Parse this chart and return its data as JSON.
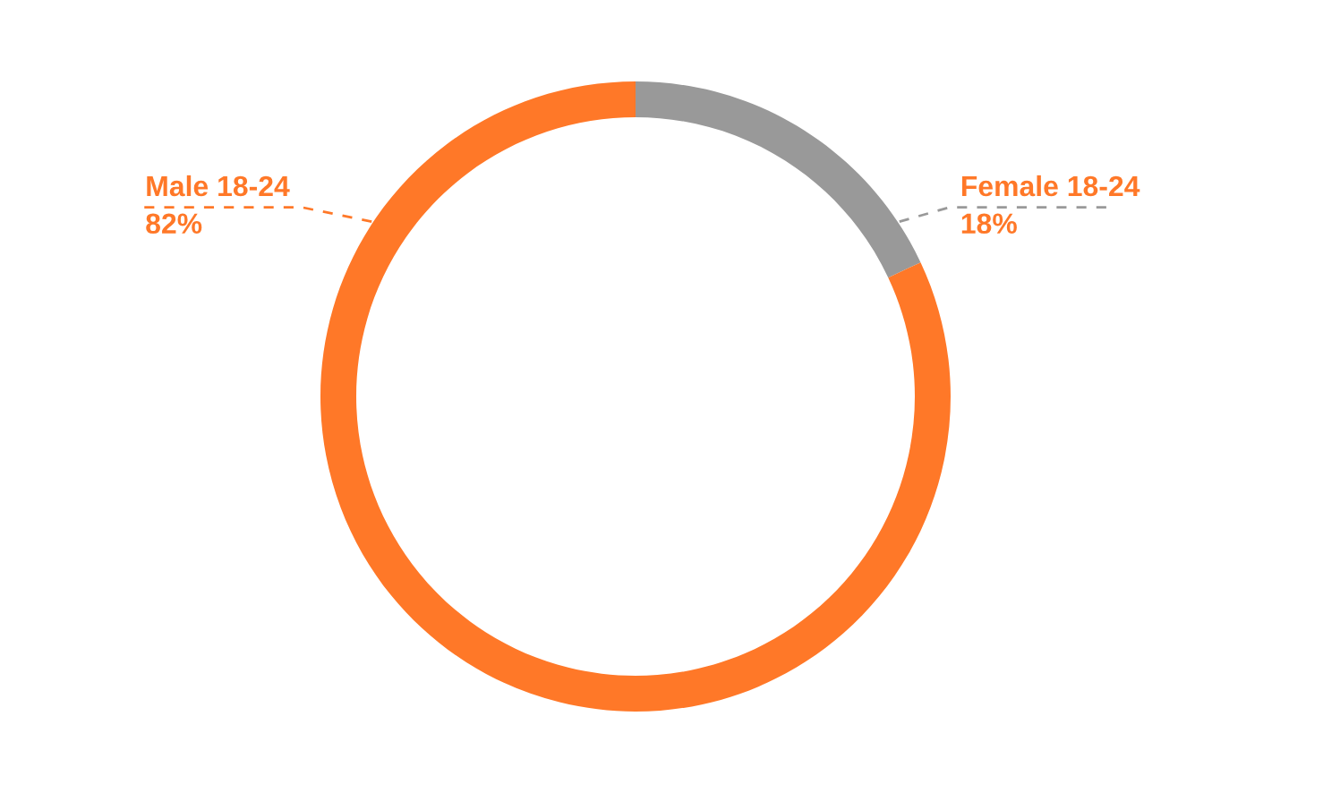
{
  "chart_data": {
    "type": "donut",
    "categories": [
      "Female 18-24",
      "Male 18-24"
    ],
    "values": [
      18,
      82
    ],
    "colors": [
      "#999999",
      "#ff7828"
    ],
    "value_labels": [
      "18%",
      "82%"
    ]
  }
}
